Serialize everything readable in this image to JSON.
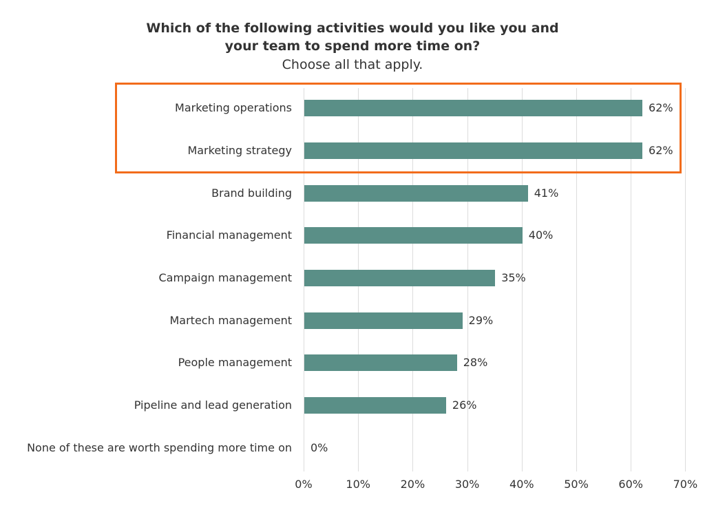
{
  "chart_data": {
    "type": "bar",
    "orientation": "horizontal",
    "title": "Which of the following activities would you like you and your team to spend more time on?",
    "subtitle": "Choose all that apply.",
    "title_lines": [
      "Which of the following activities would you like you and",
      "your team to spend more time on?"
    ],
    "categories": [
      "Marketing operations",
      "Marketing strategy",
      "Brand building",
      "Financial management",
      "Campaign management",
      "Martech management",
      "People management",
      "Pipeline and lead generation",
      "None of these are worth spending more time on"
    ],
    "values": [
      62,
      62,
      41,
      40,
      35,
      29,
      28,
      26,
      0
    ],
    "value_labels": [
      "62%",
      "62%",
      "41%",
      "40%",
      "35%",
      "29%",
      "28%",
      "26%",
      "0%"
    ],
    "xlabel": "",
    "ylabel": "",
    "xlim": [
      0,
      70
    ],
    "x_ticks": [
      "0%",
      "10%",
      "20%",
      "30%",
      "40%",
      "50%",
      "60%",
      "70%"
    ],
    "grid": true,
    "legend": null,
    "bar_color": "#5a8f87",
    "annotation": {
      "type": "highlight-box",
      "covers": [
        "Marketing operations",
        "Marketing strategy"
      ],
      "color": "#f26c1b"
    }
  }
}
